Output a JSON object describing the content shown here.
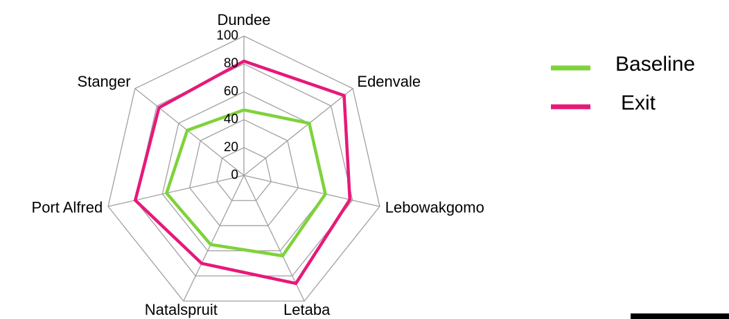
{
  "chart_data": {
    "type": "radar",
    "categories": [
      "Dundee",
      "Edenvale",
      "Lebowakgomo",
      "Letaba",
      "Natalspruit",
      "Port Alfred",
      "Stanger"
    ],
    "series": [
      {
        "name": "Baseline",
        "color": "#7ed23a",
        "values": [
          47,
          60,
          60,
          64,
          55,
          57,
          52
        ]
      },
      {
        "name": "Exit",
        "color": "#e6197a",
        "values": [
          82,
          92,
          78,
          86,
          70,
          80,
          78
        ]
      }
    ],
    "ylim": [
      0,
      100
    ],
    "yticks": [
      0,
      20,
      40,
      60,
      80,
      100
    ],
    "grid": true,
    "legend": "right"
  }
}
